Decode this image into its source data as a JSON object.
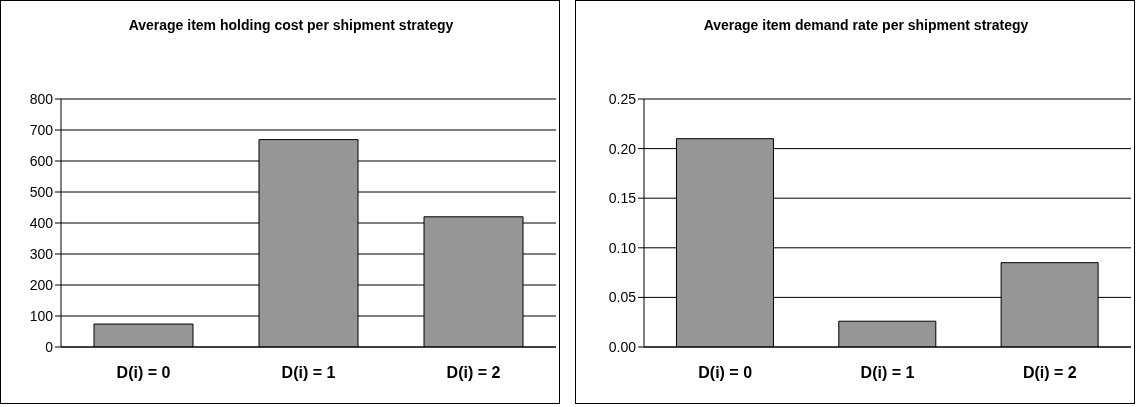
{
  "chart_data": [
    {
      "type": "bar",
      "title": "Average item holding cost per shipment strategy",
      "categories": [
        "D(i) = 0",
        "D(i) = 1",
        "D(i) = 2"
      ],
      "values": [
        74,
        669,
        420
      ],
      "color": "#969696",
      "ylim": [
        0,
        800
      ],
      "yticks": [
        0,
        100,
        200,
        300,
        400,
        500,
        600,
        700,
        800
      ],
      "grid": "y"
    },
    {
      "type": "bar",
      "title": "Average item demand rate per shipment strategy",
      "categories": [
        "D(i) = 0",
        "D(i) = 1",
        "D(i) = 2"
      ],
      "values": [
        0.21,
        0.026,
        0.085
      ],
      "color": "#969696",
      "ylim": [
        0,
        0.25
      ],
      "yticks": [
        {
          "value": 0,
          "label": "0.00"
        },
        {
          "value": 0.05,
          "label": "0.05"
        },
        {
          "value": 0.1,
          "label": "0.10"
        },
        {
          "value": 0.15,
          "label": "0.15"
        },
        {
          "value": 0.2,
          "label": "0.20"
        },
        {
          "value": 0.25,
          "label": "0.25"
        }
      ],
      "grid": "y"
    }
  ]
}
